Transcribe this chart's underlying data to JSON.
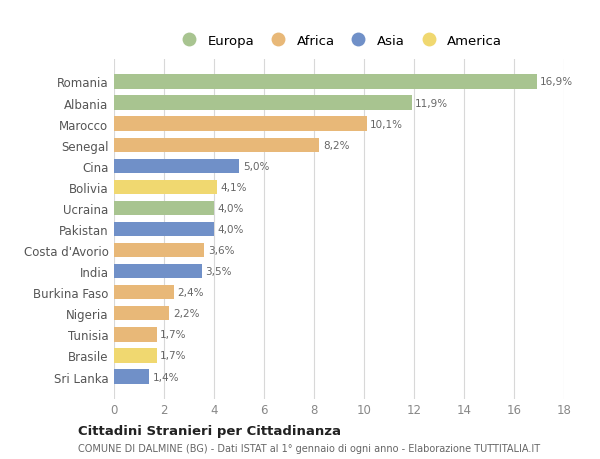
{
  "countries": [
    "Romania",
    "Albania",
    "Marocco",
    "Senegal",
    "Cina",
    "Bolivia",
    "Ucraina",
    "Pakistan",
    "Costa d'Avorio",
    "India",
    "Burkina Faso",
    "Nigeria",
    "Tunisia",
    "Brasile",
    "Sri Lanka"
  ],
  "values": [
    16.9,
    11.9,
    10.1,
    8.2,
    5.0,
    4.1,
    4.0,
    4.0,
    3.6,
    3.5,
    2.4,
    2.2,
    1.7,
    1.7,
    1.4
  ],
  "continents": [
    "Europa",
    "Europa",
    "Africa",
    "Africa",
    "Asia",
    "America",
    "Europa",
    "Asia",
    "Africa",
    "Asia",
    "Africa",
    "Africa",
    "Africa",
    "America",
    "Asia"
  ],
  "colors": {
    "Europa": "#a8c490",
    "Africa": "#e8b878",
    "Asia": "#7090c8",
    "America": "#f0d870"
  },
  "legend_order": [
    "Europa",
    "Africa",
    "Asia",
    "America"
  ],
  "title": "Cittadini Stranieri per Cittadinanza",
  "subtitle": "COMUNE DI DALMINE (BG) - Dati ISTAT al 1° gennaio di ogni anno - Elaborazione TUTTITALIA.IT",
  "xlim": [
    0,
    18
  ],
  "xticks": [
    0,
    2,
    4,
    6,
    8,
    10,
    12,
    14,
    16,
    18
  ],
  "bg_color": "#ffffff",
  "grid_color": "#d8d8d8"
}
